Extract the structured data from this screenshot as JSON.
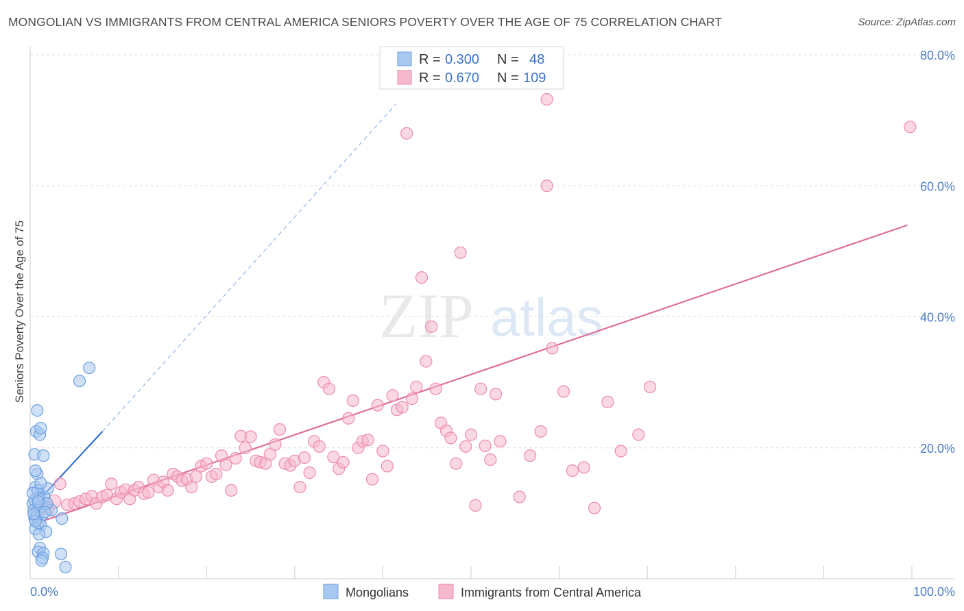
{
  "header": {
    "title": "MONGOLIAN VS IMMIGRANTS FROM CENTRAL AMERICA SENIORS POVERTY OVER THE AGE OF 75 CORRELATION CHART",
    "source": "Source: ZipAtlas.com"
  },
  "watermark": {
    "zip": "ZIP",
    "atlas": "atlas"
  },
  "colors": {
    "blue_fill": "#a9c8f0",
    "blue_stroke": "#6a9fe0",
    "blue_line": "#2f6fd0",
    "pink_fill": "#f6b8cc",
    "pink_stroke": "#ee8aaa",
    "pink_line": "#e06c94",
    "tick_label": "#4a7cc7",
    "grid": "#dddddd"
  },
  "chart_data": {
    "type": "scatter",
    "xlabel": "",
    "ylabel": "Seniors Poverty Over the Age of 75",
    "xlim": [
      0,
      100
    ],
    "ylim": [
      0,
      80
    ],
    "x_ticks": [
      {
        "value": 0,
        "label": "0.0%"
      },
      {
        "value": 100,
        "label": "100.0%"
      }
    ],
    "y_ticks": [
      {
        "value": 20,
        "label": "20.0%"
      },
      {
        "value": 40,
        "label": "40.0%"
      },
      {
        "value": 60,
        "label": "60.0%"
      },
      {
        "value": 80,
        "label": "80.0%"
      }
    ],
    "grid": "horizontal dashed",
    "legend": {
      "position": "top-center",
      "entries": [
        {
          "r_label": "R =",
          "r_value": "0.300",
          "n_label": "N =",
          "n_value": "48"
        },
        {
          "r_label": "R =",
          "r_value": "0.670",
          "n_label": "N =",
          "n_value": "109"
        }
      ]
    },
    "series": [
      {
        "name": "Mongolians",
        "color": "#a9c8f0",
        "trend": {
          "x0": 0.3,
          "y0": 11.0,
          "x1": 8.2,
          "y1": 22.5,
          "dash_x1": 41.5,
          "dash_y1": 72.5
        },
        "points": [
          [
            0.5,
            9.2
          ],
          [
            0.7,
            10.0
          ],
          [
            0.3,
            11.5
          ],
          [
            0.8,
            12.5
          ],
          [
            1.1,
            13.0
          ],
          [
            0.6,
            14.0
          ],
          [
            0.9,
            13.5
          ],
          [
            1.3,
            11.0
          ],
          [
            0.4,
            10.5
          ],
          [
            1.6,
            11.2
          ],
          [
            0.5,
            12.0
          ],
          [
            1.0,
            10.8
          ],
          [
            0.7,
            9.5
          ],
          [
            1.4,
            9.8
          ],
          [
            0.9,
            8.5
          ],
          [
            1.2,
            8.2
          ],
          [
            0.6,
            7.6
          ],
          [
            1.8,
            7.2
          ],
          [
            1.0,
            6.8
          ],
          [
            1.1,
            4.7
          ],
          [
            0.9,
            4.1
          ],
          [
            1.5,
            3.9
          ],
          [
            1.4,
            3.2
          ],
          [
            3.5,
            3.8
          ],
          [
            4.0,
            1.8
          ],
          [
            1.3,
            2.8
          ],
          [
            0.8,
            16.0
          ],
          [
            0.6,
            16.5
          ],
          [
            0.5,
            19.0
          ],
          [
            0.7,
            22.5
          ],
          [
            1.1,
            22.0
          ],
          [
            1.5,
            18.8
          ],
          [
            0.8,
            25.7
          ],
          [
            1.2,
            23.0
          ],
          [
            1.6,
            12.5
          ],
          [
            2.0,
            13.8
          ],
          [
            3.6,
            9.2
          ],
          [
            1.0,
            12.2
          ],
          [
            0.3,
            13.1
          ],
          [
            0.6,
            8.8
          ],
          [
            2.4,
            10.5
          ],
          [
            1.9,
            11.5
          ],
          [
            1.7,
            10.2
          ],
          [
            0.9,
            11.8
          ],
          [
            1.2,
            14.6
          ],
          [
            5.6,
            30.2
          ],
          [
            6.7,
            32.2
          ],
          [
            0.4,
            9.9
          ]
        ]
      },
      {
        "name": "Immigrants from Central America",
        "color": "#f6b8cc",
        "trend": {
          "x0": 0.3,
          "y0": 8.3,
          "x1": 99.5,
          "y1": 54.0
        },
        "points": [
          [
            1.0,
            10.5
          ],
          [
            1.6,
            11.0
          ],
          [
            2.0,
            10.8
          ],
          [
            2.7,
            11.8
          ],
          [
            3.4,
            14.5
          ],
          [
            4.2,
            11.3
          ],
          [
            5.0,
            11.5
          ],
          [
            5.6,
            11.8
          ],
          [
            6.3,
            12.2
          ],
          [
            7.0,
            12.6
          ],
          [
            7.5,
            11.5
          ],
          [
            8.2,
            12.5
          ],
          [
            8.7,
            12.8
          ],
          [
            9.2,
            14.5
          ],
          [
            9.8,
            12.2
          ],
          [
            10.3,
            13.2
          ],
          [
            10.8,
            13.6
          ],
          [
            11.3,
            12.2
          ],
          [
            11.8,
            13.5
          ],
          [
            12.3,
            14.0
          ],
          [
            12.9,
            13.0
          ],
          [
            13.4,
            13.2
          ],
          [
            14.0,
            15.1
          ],
          [
            14.6,
            14.0
          ],
          [
            15.1,
            14.8
          ],
          [
            15.6,
            13.5
          ],
          [
            16.2,
            16.0
          ],
          [
            16.7,
            15.6
          ],
          [
            17.2,
            15.0
          ],
          [
            17.8,
            15.2
          ],
          [
            18.3,
            14.0
          ],
          [
            18.8,
            15.6
          ],
          [
            19.4,
            17.2
          ],
          [
            20.0,
            17.6
          ],
          [
            20.6,
            15.6
          ],
          [
            21.1,
            16.0
          ],
          [
            21.7,
            18.8
          ],
          [
            22.2,
            17.4
          ],
          [
            22.8,
            13.5
          ],
          [
            23.3,
            18.4
          ],
          [
            23.9,
            21.8
          ],
          [
            24.4,
            20.0
          ],
          [
            25.0,
            21.7
          ],
          [
            25.6,
            18.0
          ],
          [
            26.1,
            17.8
          ],
          [
            26.7,
            17.6
          ],
          [
            27.2,
            19.0
          ],
          [
            27.8,
            20.5
          ],
          [
            28.3,
            22.8
          ],
          [
            28.9,
            17.6
          ],
          [
            29.5,
            17.3
          ],
          [
            30.0,
            18.0
          ],
          [
            30.6,
            14.0
          ],
          [
            31.1,
            18.5
          ],
          [
            31.7,
            16.2
          ],
          [
            32.2,
            21.0
          ],
          [
            32.8,
            20.2
          ],
          [
            33.3,
            30.0
          ],
          [
            33.9,
            29.0
          ],
          [
            34.4,
            18.6
          ],
          [
            35.0,
            16.8
          ],
          [
            35.5,
            17.8
          ],
          [
            36.1,
            24.5
          ],
          [
            36.6,
            27.2
          ],
          [
            37.2,
            20.0
          ],
          [
            37.7,
            21.0
          ],
          [
            38.3,
            21.2
          ],
          [
            38.8,
            15.2
          ],
          [
            39.4,
            26.5
          ],
          [
            40.0,
            19.5
          ],
          [
            40.5,
            17.2
          ],
          [
            41.1,
            28.0
          ],
          [
            41.6,
            25.8
          ],
          [
            42.2,
            26.2
          ],
          [
            42.7,
            68.0
          ],
          [
            43.3,
            27.5
          ],
          [
            43.8,
            29.3
          ],
          [
            44.4,
            46.0
          ],
          [
            44.9,
            33.2
          ],
          [
            45.5,
            38.5
          ],
          [
            46.0,
            29.0
          ],
          [
            46.6,
            23.8
          ],
          [
            47.2,
            22.6
          ],
          [
            47.7,
            21.5
          ],
          [
            48.3,
            17.6
          ],
          [
            48.8,
            49.8
          ],
          [
            49.4,
            20.2
          ],
          [
            50.0,
            22.0
          ],
          [
            50.5,
            11.2
          ],
          [
            51.1,
            29.0
          ],
          [
            51.6,
            20.3
          ],
          [
            52.2,
            18.2
          ],
          [
            52.8,
            28.2
          ],
          [
            53.3,
            21.0
          ],
          [
            58.6,
            73.2
          ],
          [
            58.6,
            60.0
          ],
          [
            59.2,
            35.2
          ],
          [
            60.5,
            28.6
          ],
          [
            64.0,
            10.8
          ],
          [
            70.3,
            29.3
          ],
          [
            99.8,
            69.0
          ],
          [
            55.5,
            12.5
          ],
          [
            56.7,
            18.8
          ],
          [
            57.9,
            22.5
          ],
          [
            61.5,
            16.5
          ],
          [
            62.8,
            17.0
          ],
          [
            65.5,
            27.0
          ],
          [
            67.0,
            19.5
          ],
          [
            69.0,
            22.0
          ]
        ]
      }
    ]
  }
}
